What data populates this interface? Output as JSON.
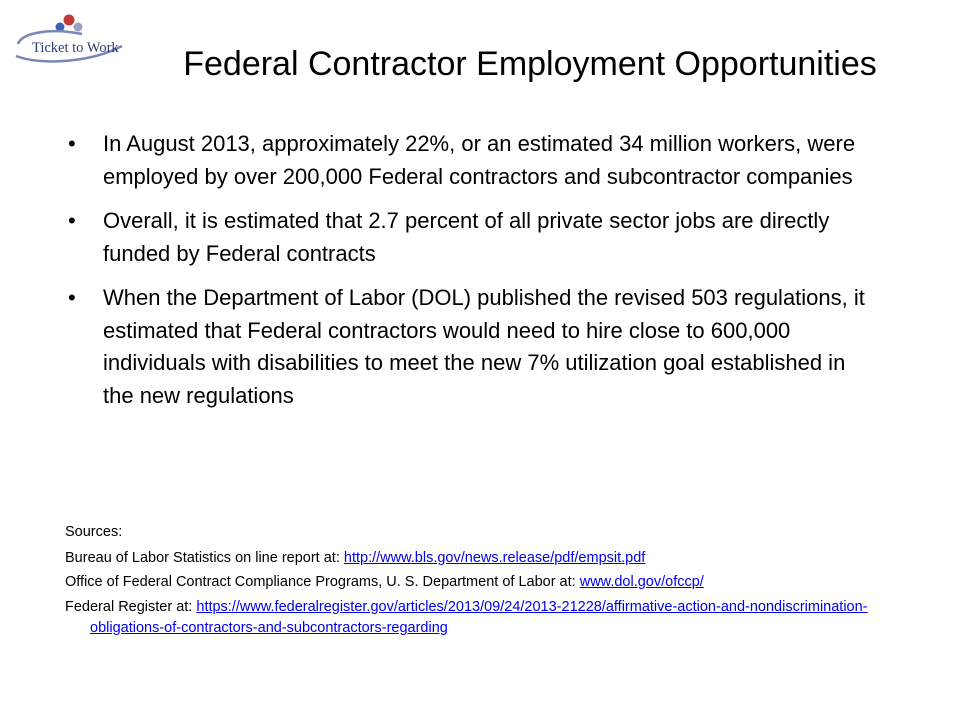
{
  "logo": {
    "text": "Ticket to Work",
    "colors": {
      "swoosh": "#7a86b8",
      "text": "#2d3a78",
      "dot_red": "#c23b3b",
      "dot_blue": "#3f5fb0",
      "dot_gray": "#9aa3bd"
    }
  },
  "slide": {
    "title": "Federal Contractor Employment Opportunities",
    "bullet_glyph": "•",
    "bullets": [
      "In August 2013, approximately 22%, or an estimated 34 million workers, were employed by over 200,000 Federal contractors and subcontractor companies",
      "Overall, it is estimated that 2.7 percent of all private sector jobs are directly funded by Federal contracts",
      "When the Department of Labor (DOL) published the revised 503 regulations, it estimated that Federal contractors would need to hire close to 600,000 individuals with disabilities to meet the new 7% utilization goal established in the new regulations"
    ]
  },
  "sources": {
    "label": "Sources:",
    "items": [
      {
        "prefix": "Bureau of Labor Statistics on line report at: ",
        "link": "http://www.bls.gov/news.release/pdf/empsit.pdf"
      },
      {
        "prefix": "Office of Federal Contract Compliance Programs, U. S. Department of Labor at: ",
        "link": "www.dol.gov/ofccp/"
      },
      {
        "prefix": "Federal Register at: ",
        "link": "https://www.federalregister.gov/articles/2013/09/24/2013-21228/affirmative-action-and-nondiscrimination-obligations-of-contractors-and-subcontractors-regarding"
      }
    ]
  }
}
